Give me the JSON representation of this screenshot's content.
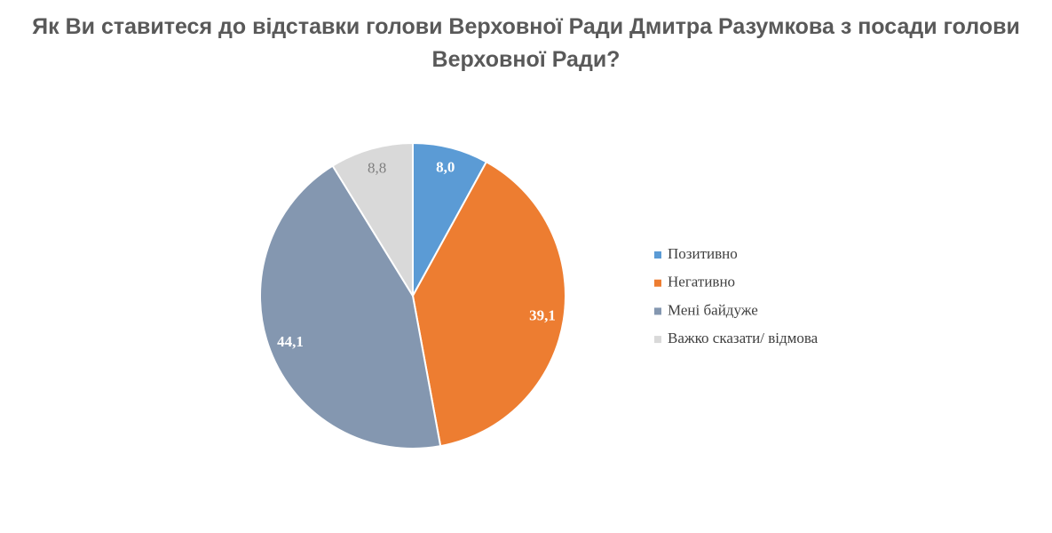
{
  "chart_data": {
    "type": "pie",
    "title": "Як Ви ставитеся до відставки голови Верховної Ради Дмитра Разумкова з посади голови Верховної Ради?",
    "categories": [
      "Позитивно",
      "Негативно",
      "Мені байдуже",
      "Важко сказати/ відмова"
    ],
    "values": [
      8.0,
      39.1,
      44.1,
      8.8
    ],
    "value_labels": [
      "8,0",
      "39,1",
      "44,1",
      "8,8"
    ],
    "colors": [
      "#5b9bd5",
      "#ed7d31",
      "#8497b0",
      "#d9d9d9"
    ],
    "legend": "right"
  }
}
